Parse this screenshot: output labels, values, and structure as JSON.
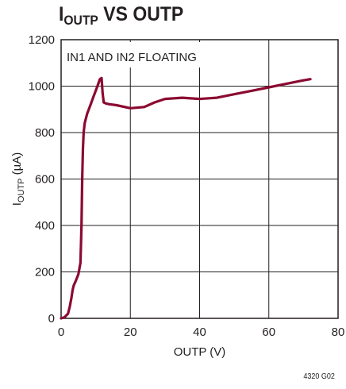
{
  "title": {
    "main": "I",
    "sub": "OUTP",
    "rest": " VS OUTP"
  },
  "figure_id": "4320 G02",
  "colors": {
    "curve": "#8b0a31",
    "grid": "#231f20",
    "text": "#231f20"
  },
  "chart_data": {
    "type": "line",
    "title": "IOUTP VS OUTP",
    "xlabel": "OUTP (V)",
    "ylabel_main": "I",
    "ylabel_sub": "OUTP",
    "ylabel_rest": " (µA)",
    "xlim": [
      0,
      80
    ],
    "ylim": [
      0,
      1200
    ],
    "xticks": [
      0,
      20,
      40,
      60,
      80
    ],
    "yticks": [
      0,
      200,
      400,
      600,
      800,
      1000,
      1200
    ],
    "grid": true,
    "annotation": "IN1 AND IN2 FLOATING",
    "series": [
      {
        "x": [
          0,
          1,
          2,
          2.5,
          3,
          3.3,
          3.6,
          4.2,
          5,
          5.6,
          5.9,
          6.1,
          6.3,
          6.5,
          6.8,
          7.5,
          8.5,
          9.5,
          10.5,
          11.2,
          11.7,
          12.0,
          12.3,
          13,
          14,
          16,
          20,
          24,
          27,
          30,
          35,
          40,
          45,
          50,
          55,
          60,
          65,
          70,
          72
        ],
        "y": [
          0,
          5,
          20,
          50,
          90,
          120,
          140,
          160,
          190,
          240,
          400,
          600,
          730,
          800,
          840,
          880,
          920,
          960,
          1000,
          1030,
          1035,
          970,
          930,
          925,
          922,
          918,
          905,
          910,
          930,
          945,
          950,
          945,
          950,
          965,
          980,
          995,
          1010,
          1025,
          1030
        ]
      }
    ]
  }
}
